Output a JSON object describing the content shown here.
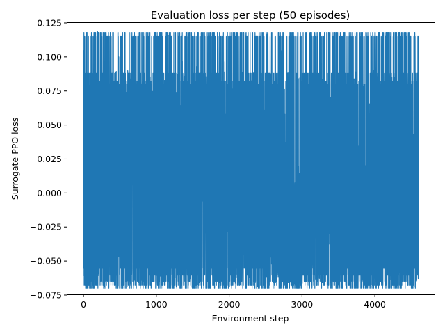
{
  "chart_data": {
    "type": "line",
    "title": "Evaluation loss per step (50 episodes)",
    "xlabel": "Environment step",
    "ylabel": "Surrogate PPO loss",
    "xlim": [
      -230,
      4820
    ],
    "ylim": [
      -0.0745,
      0.1255
    ],
    "xticks": [
      0,
      1000,
      2000,
      3000,
      4000
    ],
    "xtick_labels": [
      "0",
      "1000",
      "2000",
      "3000",
      "4000"
    ],
    "yticks": [
      -0.075,
      -0.05,
      -0.025,
      0.0,
      0.025,
      0.05,
      0.075,
      0.1,
      0.125
    ],
    "ytick_labels": [
      "−0.075",
      "−0.050",
      "−0.025",
      "0.000",
      "0.025",
      "0.050",
      "0.075",
      "0.100",
      "0.125"
    ],
    "grid": false,
    "legend": "none",
    "series": [
      {
        "color": "#1f77b4",
        "x_range": [
          0,
          4600
        ],
        "approx_min": -0.07,
        "approx_max": 0.119,
        "points": [
          [
            0,
            0.105
          ],
          [
            20,
            -0.055
          ],
          [
            50,
            0.088
          ],
          [
            100,
            -0.068
          ],
          [
            150,
            0.115
          ],
          [
            200,
            0.119
          ],
          [
            260,
            0.115
          ],
          [
            300,
            -0.07
          ],
          [
            350,
            0.118
          ],
          [
            400,
            -0.065
          ],
          [
            450,
            0.085
          ],
          [
            520,
            0.115
          ],
          [
            570,
            0.119
          ],
          [
            620,
            -0.068
          ],
          [
            680,
            0.115
          ],
          [
            740,
            -0.066
          ],
          [
            810,
            0.028
          ],
          [
            900,
            0.083
          ],
          [
            960,
            -0.07
          ],
          [
            1050,
            0.115
          ],
          [
            1100,
            0.118
          ],
          [
            1200,
            0.115
          ],
          [
            1280,
            -0.07
          ],
          [
            1350,
            0.118
          ],
          [
            1420,
            -0.068
          ],
          [
            1500,
            0.115
          ],
          [
            1580,
            0.081
          ],
          [
            1650,
            0.05
          ],
          [
            1750,
            0.115
          ],
          [
            1850,
            -0.07
          ],
          [
            1950,
            0.115
          ],
          [
            2050,
            -0.07
          ],
          [
            2100,
            0.115
          ],
          [
            2200,
            -0.068
          ],
          [
            2300,
            0.118
          ],
          [
            2400,
            -0.07
          ],
          [
            2500,
            0.115
          ],
          [
            2550,
            0.119
          ],
          [
            2650,
            -0.068
          ],
          [
            2720,
            0.115
          ],
          [
            2800,
            -0.07
          ],
          [
            2900,
            0.118
          ],
          [
            3000,
            -0.066
          ],
          [
            3050,
            0.115
          ],
          [
            3150,
            0.119
          ],
          [
            3250,
            -0.07
          ],
          [
            3350,
            0.118
          ],
          [
            3450,
            -0.068
          ],
          [
            3550,
            0.115
          ],
          [
            3620,
            -0.07
          ],
          [
            3700,
            0.118
          ],
          [
            3800,
            -0.068
          ],
          [
            3850,
            0.115
          ],
          [
            3900,
            0.119
          ],
          [
            4000,
            -0.07
          ],
          [
            4050,
            0.115
          ],
          [
            4150,
            -0.068
          ],
          [
            4250,
            0.118
          ],
          [
            4300,
            -0.07
          ],
          [
            4400,
            0.115
          ],
          [
            4500,
            0.11
          ],
          [
            4560,
            -0.07
          ],
          [
            4600,
            0.08
          ]
        ]
      }
    ]
  }
}
